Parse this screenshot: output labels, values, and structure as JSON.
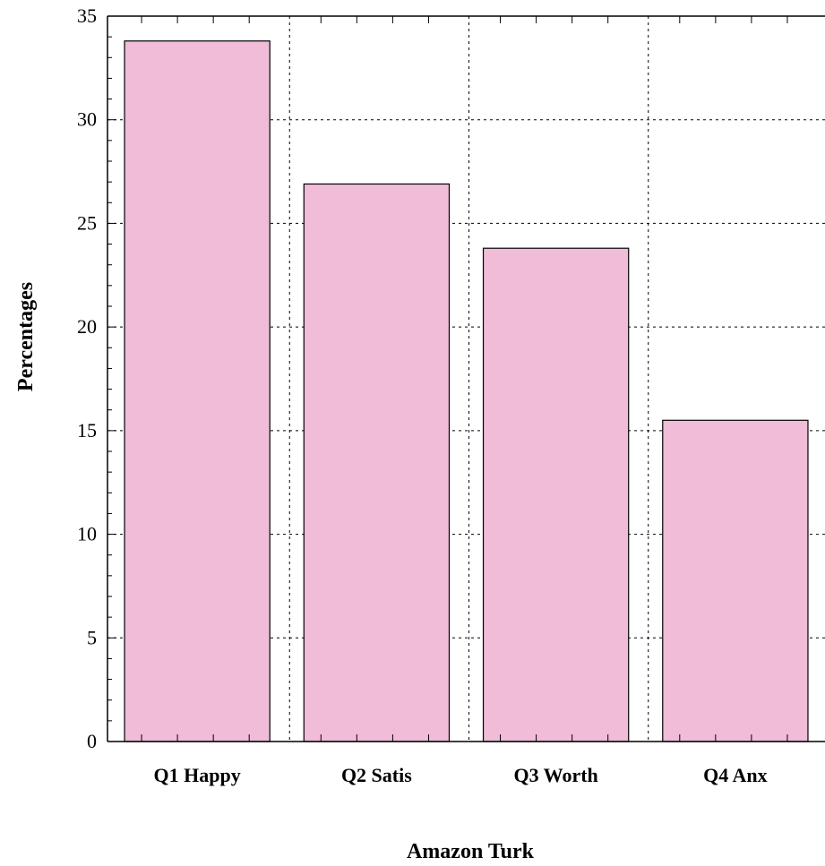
{
  "chart_data": {
    "type": "bar",
    "title": "",
    "categories": [
      "Q1 Happy",
      "Q2 Satis",
      "Q3 Worth",
      "Q4 Anx"
    ],
    "values": [
      33.8,
      26.9,
      23.8,
      15.5
    ],
    "xlabel": "Amazon Turk",
    "ylabel": "Percentages",
    "ylim": [
      0,
      35
    ],
    "yticks": [
      0,
      5,
      10,
      15,
      20,
      25,
      30,
      35
    ],
    "yticklabels": [
      "0",
      "5",
      "10",
      "15",
      "20",
      "25",
      "30",
      "35"
    ],
    "grid": true,
    "bar_color": "#f0bcd8",
    "bar_edge_color": "#000000"
  }
}
